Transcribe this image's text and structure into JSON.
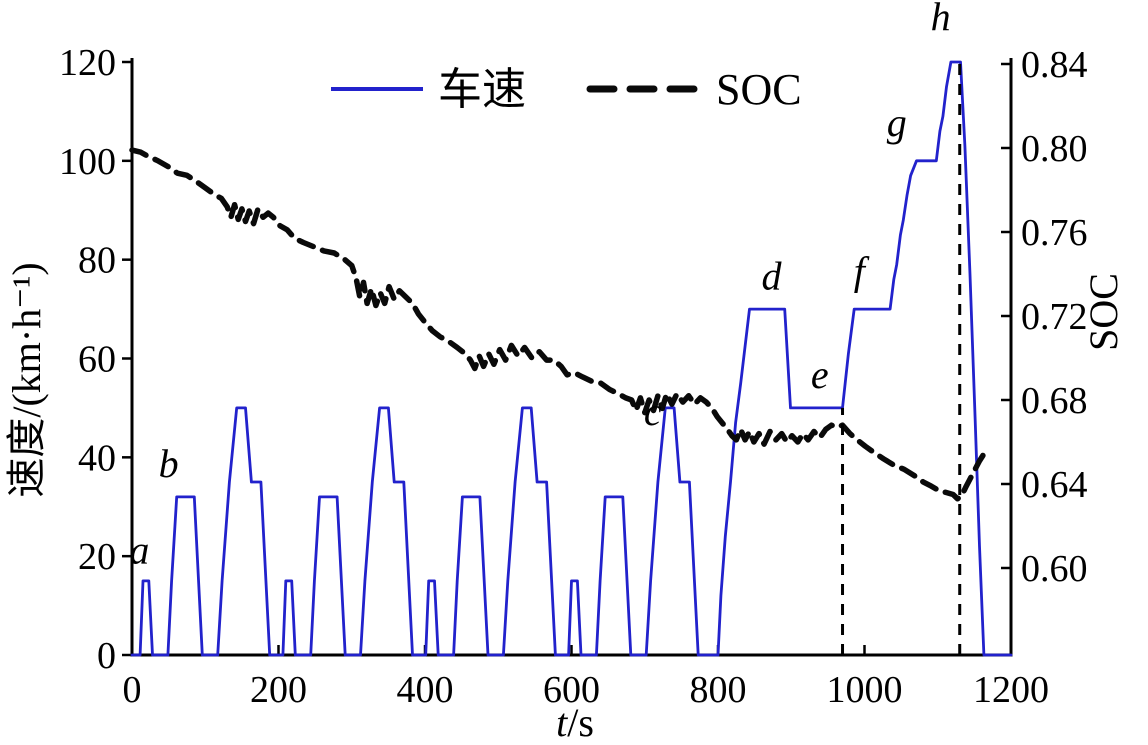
{
  "chart_data": {
    "type": "line",
    "title": "",
    "xlabel": {
      "italic_part": "t",
      "rest_part": "/s"
    },
    "ylabel_left": "速度/(km·h⁻¹)",
    "ylabel_right": "SOC",
    "xlim": [
      0,
      1200
    ],
    "left_ylim": [
      0,
      120
    ],
    "right_axis": {
      "top_value": 0.84,
      "bottom_value": 0.6,
      "grid": false
    },
    "x_ticks": [
      0,
      200,
      400,
      600,
      800,
      1000,
      1200
    ],
    "left_ticks": [
      0,
      20,
      40,
      60,
      80,
      100,
      120
    ],
    "right_ticks": [
      "0.60",
      "0.64",
      "0.68",
      "0.72",
      "0.76",
      "0.80",
      "0.84"
    ],
    "legend": [
      {
        "label": "车速",
        "color": "#2222cc",
        "style": "solid"
      },
      {
        "label": "SOC",
        "color": "#0a0a0a",
        "style": "dashed"
      }
    ],
    "series": [
      {
        "name": "车速",
        "axis": "left",
        "color": "#2222cc",
        "style": "solid",
        "width": 2.8,
        "points": [
          [
            0,
            0
          ],
          [
            11,
            0
          ],
          [
            15,
            15
          ],
          [
            23,
            15
          ],
          [
            28,
            0
          ],
          [
            49,
            0
          ],
          [
            54,
            15
          ],
          [
            61,
            32
          ],
          [
            85,
            32
          ],
          [
            96,
            0
          ],
          [
            117,
            0
          ],
          [
            123,
            15
          ],
          [
            133,
            35
          ],
          [
            143,
            50
          ],
          [
            155,
            50
          ],
          [
            163,
            35
          ],
          [
            176,
            35
          ],
          [
            188,
            0
          ],
          [
            195,
            0
          ],
          [
            206,
            0
          ],
          [
            210,
            15
          ],
          [
            218,
            15
          ],
          [
            223,
            0
          ],
          [
            244,
            0
          ],
          [
            249,
            15
          ],
          [
            256,
            32
          ],
          [
            280,
            32
          ],
          [
            291,
            0
          ],
          [
            312,
            0
          ],
          [
            318,
            15
          ],
          [
            328,
            35
          ],
          [
            338,
            50
          ],
          [
            350,
            50
          ],
          [
            358,
            35
          ],
          [
            371,
            35
          ],
          [
            383,
            0
          ],
          [
            390,
            0
          ],
          [
            401,
            0
          ],
          [
            405,
            15
          ],
          [
            413,
            15
          ],
          [
            418,
            0
          ],
          [
            439,
            0
          ],
          [
            444,
            15
          ],
          [
            451,
            32
          ],
          [
            475,
            32
          ],
          [
            486,
            0
          ],
          [
            507,
            0
          ],
          [
            513,
            15
          ],
          [
            523,
            35
          ],
          [
            533,
            50
          ],
          [
            545,
            50
          ],
          [
            553,
            35
          ],
          [
            566,
            35
          ],
          [
            578,
            0
          ],
          [
            585,
            0
          ],
          [
            596,
            0
          ],
          [
            600,
            15
          ],
          [
            608,
            15
          ],
          [
            613,
            0
          ],
          [
            634,
            0
          ],
          [
            639,
            15
          ],
          [
            646,
            32
          ],
          [
            670,
            32
          ],
          [
            681,
            0
          ],
          [
            702,
            0
          ],
          [
            708,
            15
          ],
          [
            718,
            35
          ],
          [
            728,
            50
          ],
          [
            740,
            50
          ],
          [
            748,
            35
          ],
          [
            761,
            35
          ],
          [
            773,
            0
          ],
          [
            780,
            0
          ],
          [
            800,
            0
          ],
          [
            804,
            12
          ],
          [
            810,
            24
          ],
          [
            817,
            35
          ],
          [
            824,
            47
          ],
          [
            831,
            55
          ],
          [
            843,
            70
          ],
          [
            891,
            70
          ],
          [
            899,
            50
          ],
          [
            970,
            50
          ],
          [
            978,
            61
          ],
          [
            986,
            70
          ],
          [
            1035,
            70
          ],
          [
            1040,
            76
          ],
          [
            1044,
            79
          ],
          [
            1049,
            85
          ],
          [
            1053,
            88
          ],
          [
            1058,
            93
          ],
          [
            1063,
            97
          ],
          [
            1071,
            100
          ],
          [
            1098,
            100
          ],
          [
            1103,
            106
          ],
          [
            1107,
            109
          ],
          [
            1112,
            115
          ],
          [
            1118,
            120
          ],
          [
            1131,
            120
          ],
          [
            1137,
            103
          ],
          [
            1144,
            77
          ],
          [
            1151,
            48
          ],
          [
            1157,
            22
          ],
          [
            1163,
            0
          ],
          [
            1200,
            0
          ]
        ]
      },
      {
        "name": "SOC",
        "axis": "right",
        "color": "#0a0a0a",
        "style": "dashed",
        "width": 5.5,
        "points": [
          [
            0,
            0.799
          ],
          [
            12,
            0.798
          ],
          [
            22,
            0.796
          ],
          [
            35,
            0.794
          ],
          [
            50,
            0.791
          ],
          [
            62,
            0.788
          ],
          [
            75,
            0.787
          ],
          [
            88,
            0.784
          ],
          [
            100,
            0.781
          ],
          [
            112,
            0.778
          ],
          [
            122,
            0.776
          ],
          [
            130,
            0.772
          ],
          [
            135,
            0.767
          ],
          [
            140,
            0.773
          ],
          [
            145,
            0.766
          ],
          [
            150,
            0.771
          ],
          [
            155,
            0.765
          ],
          [
            160,
            0.77
          ],
          [
            166,
            0.764
          ],
          [
            172,
            0.771
          ],
          [
            179,
            0.767
          ],
          [
            186,
            0.769
          ],
          [
            193,
            0.767
          ],
          [
            202,
            0.763
          ],
          [
            212,
            0.761
          ],
          [
            222,
            0.757
          ],
          [
            234,
            0.755
          ],
          [
            248,
            0.753
          ],
          [
            262,
            0.751
          ],
          [
            276,
            0.75
          ],
          [
            290,
            0.747
          ],
          [
            300,
            0.744
          ],
          [
            306,
            0.738
          ],
          [
            311,
            0.729
          ],
          [
            316,
            0.736
          ],
          [
            321,
            0.726
          ],
          [
            327,
            0.733
          ],
          [
            333,
            0.725
          ],
          [
            339,
            0.731
          ],
          [
            345,
            0.726
          ],
          [
            351,
            0.734
          ],
          [
            358,
            0.728
          ],
          [
            365,
            0.732
          ],
          [
            374,
            0.729
          ],
          [
            383,
            0.726
          ],
          [
            391,
            0.721
          ],
          [
            400,
            0.717
          ],
          [
            410,
            0.713
          ],
          [
            421,
            0.71
          ],
          [
            432,
            0.708
          ],
          [
            444,
            0.705
          ],
          [
            455,
            0.702
          ],
          [
            462,
            0.699
          ],
          [
            468,
            0.695
          ],
          [
            474,
            0.701
          ],
          [
            480,
            0.696
          ],
          [
            487,
            0.702
          ],
          [
            494,
            0.697
          ],
          [
            502,
            0.704
          ],
          [
            510,
            0.699
          ],
          [
            518,
            0.706
          ],
          [
            527,
            0.701
          ],
          [
            536,
            0.705
          ],
          [
            546,
            0.7
          ],
          [
            556,
            0.703
          ],
          [
            566,
            0.699
          ],
          [
            576,
            0.699
          ],
          [
            586,
            0.696
          ],
          [
            594,
            0.692
          ],
          [
            604,
            0.693
          ],
          [
            615,
            0.691
          ],
          [
            627,
            0.689
          ],
          [
            640,
            0.688
          ],
          [
            652,
            0.685
          ],
          [
            664,
            0.683
          ],
          [
            674,
            0.681
          ],
          [
            682,
            0.68
          ],
          [
            688,
            0.675
          ],
          [
            694,
            0.681
          ],
          [
            700,
            0.674
          ],
          [
            706,
            0.68
          ],
          [
            712,
            0.675
          ],
          [
            718,
            0.682
          ],
          [
            724,
            0.676
          ],
          [
            730,
            0.683
          ],
          [
            737,
            0.678
          ],
          [
            744,
            0.683
          ],
          [
            752,
            0.679
          ],
          [
            760,
            0.682
          ],
          [
            768,
            0.678
          ],
          [
            776,
            0.681
          ],
          [
            784,
            0.679
          ],
          [
            792,
            0.676
          ],
          [
            799,
            0.672
          ],
          [
            806,
            0.669
          ],
          [
            813,
            0.666
          ],
          [
            819,
            0.663
          ],
          [
            825,
            0.661
          ],
          [
            831,
            0.666
          ],
          [
            837,
            0.661
          ],
          [
            843,
            0.665
          ],
          [
            849,
            0.66
          ],
          [
            856,
            0.664
          ],
          [
            863,
            0.659
          ],
          [
            871,
            0.665
          ],
          [
            879,
            0.661
          ],
          [
            887,
            0.664
          ],
          [
            894,
            0.66
          ],
          [
            901,
            0.663
          ],
          [
            909,
            0.66
          ],
          [
            916,
            0.664
          ],
          [
            923,
            0.661
          ],
          [
            931,
            0.665
          ],
          [
            939,
            0.662
          ],
          [
            947,
            0.666
          ],
          [
            955,
            0.668
          ],
          [
            963,
            0.667
          ],
          [
            970,
            0.668
          ],
          [
            980,
            0.664
          ],
          [
            990,
            0.661
          ],
          [
            1001,
            0.658
          ],
          [
            1013,
            0.655
          ],
          [
            1026,
            0.652
          ],
          [
            1040,
            0.649
          ],
          [
            1054,
            0.647
          ],
          [
            1068,
            0.644
          ],
          [
            1080,
            0.641
          ],
          [
            1091,
            0.639
          ],
          [
            1101,
            0.637
          ],
          [
            1111,
            0.636
          ],
          [
            1121,
            0.635
          ],
          [
            1127,
            0.633
          ],
          [
            1132,
            0.634
          ],
          [
            1139,
            0.639
          ],
          [
            1148,
            0.645
          ],
          [
            1157,
            0.651
          ],
          [
            1166,
            0.656
          ]
        ]
      }
    ],
    "annotations": [
      {
        "label": "a",
        "t": 10,
        "v": 18.5
      },
      {
        "label": "b",
        "t": 50,
        "v": 36
      },
      {
        "label": "c",
        "t": 711,
        "v": 46.5
      },
      {
        "label": "d",
        "t": 873,
        "v": 74
      },
      {
        "label": "e",
        "t": 939,
        "v": 54
      },
      {
        "label": "f",
        "t": 993,
        "v": 75
      },
      {
        "label": "g",
        "t": 1044,
        "v": 105
      },
      {
        "label": "h",
        "t": 1104,
        "v": 126.5
      }
    ],
    "cut_lines": [
      {
        "t": 970,
        "top_v": 50
      },
      {
        "t": 1130,
        "top_v": 120
      }
    ]
  }
}
